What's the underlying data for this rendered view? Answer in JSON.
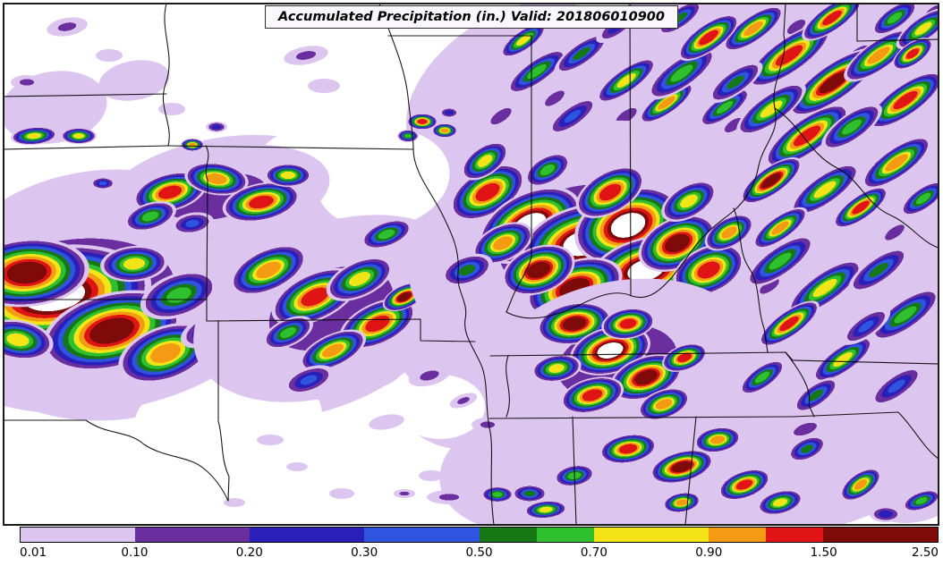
{
  "title": "Accumulated Precipitation (in.) Valid: 201806010900",
  "map": {
    "background_color": "#FFFFFF",
    "border_color": "#000000",
    "state_line_color": "#000000"
  },
  "colorbar": {
    "unit": "in.",
    "ticks": [
      "0.01",
      "0.10",
      "0.20",
      "0.30",
      "0.50",
      "0.70",
      "0.90",
      "1.50",
      "2.50"
    ],
    "segments": [
      {
        "label": "0.01-0.10",
        "color": "#DCC6EF",
        "span": 1
      },
      {
        "label": "0.10-0.20",
        "color": "#6B2E9F",
        "span": 1
      },
      {
        "label": "0.20-0.30",
        "color": "#2A1FB8",
        "span": 1
      },
      {
        "label": "0.30-0.50",
        "color": "#2E54E0",
        "span": 1
      },
      {
        "label": "0.50-0.60",
        "color": "#157815",
        "span": 0.5
      },
      {
        "label": "0.60-0.70",
        "color": "#2FC02F",
        "span": 0.5
      },
      {
        "label": "0.70-0.90",
        "color": "#F2E417",
        "span": 1
      },
      {
        "label": "0.90-1.20",
        "color": "#F59A13",
        "span": 0.5
      },
      {
        "label": "1.20-1.50",
        "color": "#E01414",
        "span": 0.5
      },
      {
        "label": "1.50-2.50",
        "color": "#7E0A0A",
        "span": 1
      }
    ]
  },
  "chart_data": {
    "type": "heatmap",
    "title": "Accumulated Precipitation (in.) Valid: 201806010900",
    "variable": "Accumulated Precipitation",
    "units": "in.",
    "valid_time": "201806010900",
    "levels": [
      0.01,
      0.1,
      0.2,
      0.3,
      0.5,
      0.7,
      0.9,
      1.5,
      2.5
    ],
    "colors": [
      "#DCC6EF",
      "#6B2E9F",
      "#2A1FB8",
      "#2E54E0",
      "#157815",
      "#2FC02F",
      "#F2E417",
      "#F59A13",
      "#E01414",
      "#7E0A0A"
    ],
    "over_color": "#FFFFFF",
    "legend_position": "bottom"
  }
}
